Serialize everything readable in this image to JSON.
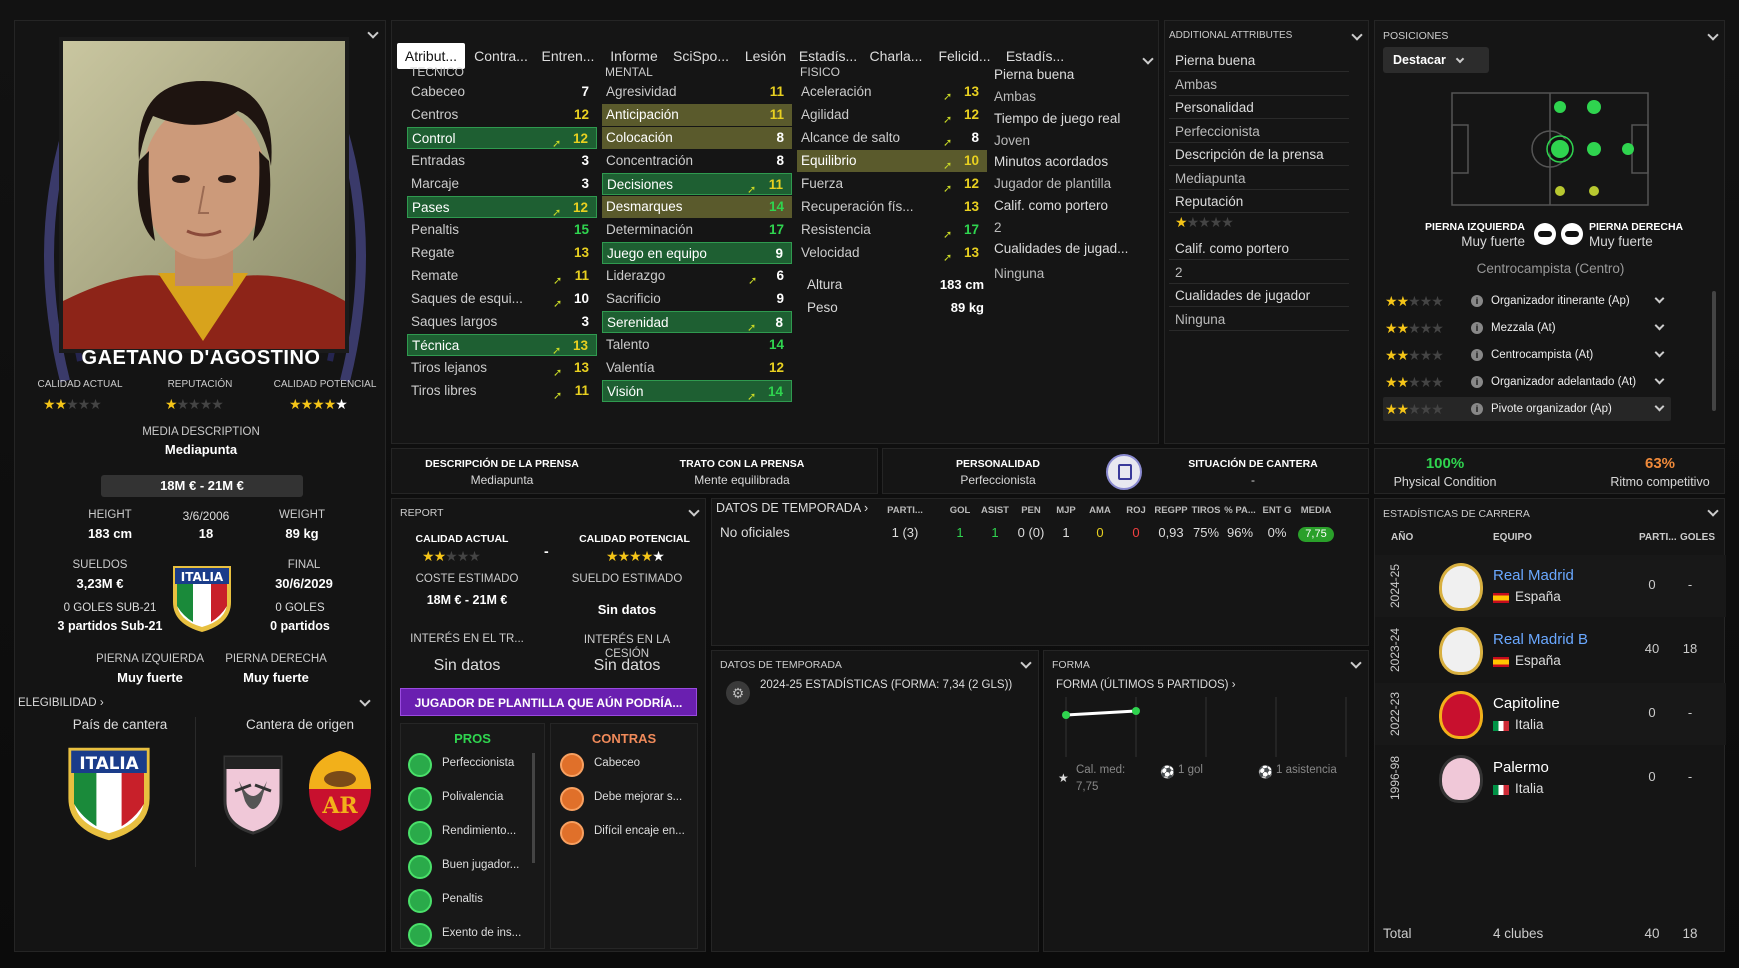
{
  "player": {
    "name": "GAETANO D'AGOSTINO",
    "calidad_actual_label": "CALIDAD ACTUAL",
    "reputacion_label": "REPUTACIÓN",
    "calidad_potencial_label": "CALIDAD POTENCIAL",
    "calidad_actual_stars": 2,
    "reputacion_stars": 1,
    "calidad_potencial_stars": 5,
    "media_description_label": "MEDIA DESCRIPTION",
    "media_description": "Mediapunta",
    "value": "18M € - 21M €",
    "height_label": "HEIGHT",
    "height": "183 cm",
    "dob": "3/6/2006",
    "age": "18",
    "weight_label": "WEIGHT",
    "weight": "89 kg",
    "sueldos_label": "SUELDOS",
    "sueldos": "3,23M €",
    "final_label": "FINAL",
    "final": "30/6/2029",
    "goles_sub21": "0 GOLES SUB-21",
    "partidos_sub21": "3 partidos Sub-21",
    "goles": "0 GOLES",
    "partidos": "0 partidos",
    "nation_label": "ITALIA",
    "pierna_izq_label": "PIERNA IZQUIERDA",
    "pierna_izq": "Muy fuerte",
    "pierna_der_label": "PIERNA DERECHA",
    "pierna_der": "Muy fuerte",
    "elegibilidad": "ELEGIBILIDAD",
    "pais_cantera_label": "País de cantera",
    "cantera_origen_label": "Cantera de origen"
  },
  "tabs": [
    "Atribut...",
    "Contra...",
    "Entren...",
    "Informe",
    "SciSpo...",
    "Lesión",
    "Estadís...",
    "Charla...",
    "Felicid...",
    "Estadís..."
  ],
  "attributes": {
    "tecnico_label": "TECNICO",
    "mental_label": "MENTAL",
    "fisico_label": "FISICO",
    "tecnico": [
      {
        "n": "Cabeceo",
        "v": "7",
        "s": ""
      },
      {
        "n": "Centros",
        "v": "12",
        "s": ""
      },
      {
        "n": "Control",
        "v": "12",
        "s": "hl",
        "a": true
      },
      {
        "n": "Entradas",
        "v": "3",
        "s": ""
      },
      {
        "n": "Marcaje",
        "v": "3",
        "s": ""
      },
      {
        "n": "Pases",
        "v": "12",
        "s": "hl",
        "a": true
      },
      {
        "n": "Penaltis",
        "v": "15",
        "s": ""
      },
      {
        "n": "Regate",
        "v": "13",
        "s": ""
      },
      {
        "n": "Remate",
        "v": "11",
        "s": "",
        "a": true
      },
      {
        "n": "Saques de esqui...",
        "v": "10",
        "s": "",
        "a": true
      },
      {
        "n": "Saques largos",
        "v": "3",
        "s": ""
      },
      {
        "n": "Técnica",
        "v": "13",
        "s": "hl",
        "a": true
      },
      {
        "n": "Tiros lejanos",
        "v": "13",
        "s": "",
        "a": true
      },
      {
        "n": "Tiros libres",
        "v": "11",
        "s": "",
        "a": true
      }
    ],
    "mental": [
      {
        "n": "Agresividad",
        "v": "11",
        "s": ""
      },
      {
        "n": "Anticipación",
        "v": "11",
        "s": "ol"
      },
      {
        "n": "Colocación",
        "v": "8",
        "s": "ol"
      },
      {
        "n": "Concentración",
        "v": "8",
        "s": ""
      },
      {
        "n": "Decisiones",
        "v": "11",
        "s": "hl",
        "a": true
      },
      {
        "n": "Desmarques",
        "v": "14",
        "s": "ol"
      },
      {
        "n": "Determinación",
        "v": "17",
        "s": ""
      },
      {
        "n": "Juego en equipo",
        "v": "9",
        "s": "hl"
      },
      {
        "n": "Liderazgo",
        "v": "6",
        "s": "",
        "a": true
      },
      {
        "n": "Sacrificio",
        "v": "9",
        "s": ""
      },
      {
        "n": "Serenidad",
        "v": "8",
        "s": "hl",
        "a": true
      },
      {
        "n": "Talento",
        "v": "14",
        "s": ""
      },
      {
        "n": "Valentía",
        "v": "12",
        "s": ""
      },
      {
        "n": "Visión",
        "v": "14",
        "s": "hl",
        "a": true
      }
    ],
    "fisico": [
      {
        "n": "Aceleración",
        "v": "13",
        "s": "",
        "a": true
      },
      {
        "n": "Agilidad",
        "v": "12",
        "s": "",
        "a": true
      },
      {
        "n": "Alcance de salto",
        "v": "8",
        "s": "",
        "a": true
      },
      {
        "n": "Equilibrio",
        "v": "10",
        "s": "ol",
        "a": true
      },
      {
        "n": "Fuerza",
        "v": "12",
        "s": "",
        "a": true
      },
      {
        "n": "Recuperación fís...",
        "v": "13",
        "s": ""
      },
      {
        "n": "Resistencia",
        "v": "17",
        "s": "",
        "a": true
      },
      {
        "n": "Velocidad",
        "v": "13",
        "s": "",
        "a": true
      }
    ],
    "altura_label": "Altura",
    "altura": "183 cm",
    "peso_label": "Peso",
    "peso": "89 kg",
    "side_list": [
      "Pierna buena",
      "Ambas",
      "Tiempo de juego real",
      "Joven",
      "Minutos acordados",
      "Jugador de plantilla",
      "Calif. como portero",
      "2",
      "Cualidades de jugad...",
      "Ninguna"
    ]
  },
  "additional": {
    "title": "ADDITIONAL ATTRIBUTES",
    "items": [
      "Pierna buena",
      "Ambas",
      "Personalidad",
      "Perfeccionista",
      "Descripción de la prensa",
      "Mediapunta",
      "Reputación"
    ],
    "rep_stars": 1,
    "items2": [
      "Calif. como portero",
      "2",
      "Cualidades de jugador",
      "Ninguna"
    ]
  },
  "positions": {
    "title": "POSICIONES",
    "dropdown": "Destacar",
    "pierna_izq_label": "PIERNA IZQUIERDA",
    "pierna_izq": "Muy fuerte",
    "pierna_der_label": "PIERNA DERECHA",
    "pierna_der": "Muy fuerte",
    "role": "Centrocampista (Centro)",
    "roles": [
      {
        "name": "Organizador itinerante (Ap)",
        "stars": 2
      },
      {
        "name": "Mezzala (At)",
        "stars": 2
      },
      {
        "name": "Centrocampista (At)",
        "stars": 2
      },
      {
        "name": "Organizador adelantado (At)",
        "stars": 2
      },
      {
        "name": "Pivote organizador (Ap)",
        "stars": 2
      }
    ]
  },
  "press": {
    "desc_label": "DESCRIPCIÓN DE LA PRENSA",
    "desc": "Mediapunta",
    "trato_label": "TRATO CON LA PRENSA",
    "trato": "Mente equilibrada",
    "pers_label": "PERSONALIDAD",
    "pers": "Perfeccionista",
    "cantera_label": "SITUACIÓN DE CANTERA",
    "cantera": "-"
  },
  "condition": {
    "physical": "100%",
    "physical_label": "Physical Condition",
    "ritmo": "63%",
    "ritmo_label": "Ritmo competitivo"
  },
  "report": {
    "title": "REPORT",
    "ca_label": "CALIDAD ACTUAL",
    "cp_label": "CALIDAD POTENCIAL",
    "dash": "-",
    "coste_label": "COSTE ESTIMADO",
    "coste": "18M € - 21M €",
    "sueldo_label": "SUELDO ESTIMADO",
    "sueldo": "Sin datos",
    "interes_tr_label": "INTERÉS EN EL TR...",
    "interes_tr": "Sin datos",
    "interes_ces_label": "INTERÉS EN LA CESIÓN",
    "interes_ces": "Sin datos",
    "banner": "JUGADOR DE PLANTILLA QUE AÚN PODRÍA...",
    "pros_label": "PROS",
    "contras_label": "CONTRAS",
    "pros": [
      "Perfeccionista",
      "Polivalencia",
      "Rendimiento...",
      "Buen jugador...",
      "Penaltis",
      "Exento de ins..."
    ],
    "contras": [
      "Cabeceo",
      "Debe mejorar s...",
      "Difícil encaje en..."
    ]
  },
  "season": {
    "title": "DATOS DE TEMPORADA",
    "headers": [
      "PARTI...",
      "GOL",
      "ASIST",
      "PEN",
      "MJP",
      "AMA",
      "ROJ",
      "REGPP",
      "TIROS",
      "% PA...",
      "ENT G",
      "MEDIA"
    ],
    "row_label": "No oficiales",
    "row": [
      "1 (3)",
      "1",
      "1",
      "0 (0)",
      "1",
      "0",
      "0",
      "0,93",
      "75%",
      "96%",
      "0%",
      "7,75"
    ]
  },
  "season2": {
    "title": "DATOS DE TEMPORADA",
    "text": "2024-25 ESTADÍSTICAS (FORMA: 7,34 (2 GLS))"
  },
  "forma": {
    "title": "FORMA",
    "subtitle": "FORMA (ÚLTIMOS 5 PARTIDOS)",
    "cal_label": "Cal. med:",
    "cal": "7,75",
    "gol": "1 gol",
    "asist": "1 asistencia"
  },
  "career": {
    "title": "ESTADÍSTICAS DE CARRERA",
    "h_year": "AÑO",
    "h_team": "EQUIPO",
    "h_parti": "PARTI...",
    "h_goles": "GOLES",
    "rows": [
      {
        "year": "2024-25",
        "team": "Real Madrid",
        "country": "España",
        "parti": "0",
        "goles": "-",
        "link": true
      },
      {
        "year": "2023-24",
        "team": "Real Madrid B",
        "country": "España",
        "parti": "40",
        "goles": "18",
        "link": true
      },
      {
        "year": "2022-23",
        "team": "Capitoline",
        "country": "Italia",
        "parti": "0",
        "goles": "-",
        "link": false
      },
      {
        "year": "1996-98",
        "team": "Palermo",
        "country": "Italia",
        "parti": "0",
        "goles": "-",
        "link": false
      }
    ],
    "total_label": "Total",
    "total_clubs": "4 clubes",
    "total_parti": "40",
    "total_goles": "18"
  }
}
